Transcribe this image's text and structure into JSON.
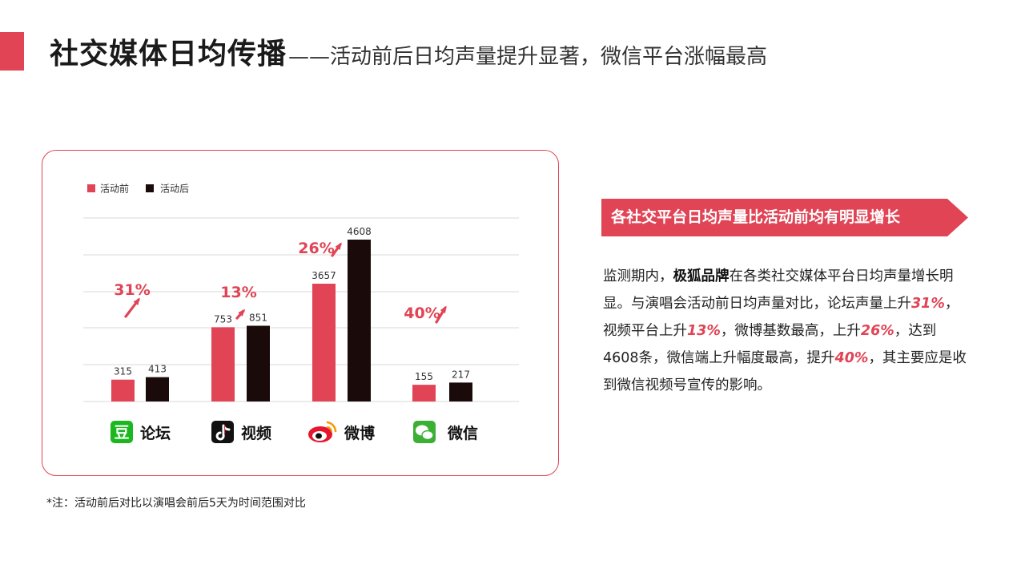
{
  "header": {
    "title_main": "社交媒体日均传播",
    "title_sub": "——活动前后日均声量提升显著，微信平台涨幅最高"
  },
  "colors": {
    "accent": "#e04455",
    "before": "#e04455",
    "after": "#1a0a0a",
    "grid": "#d9d9d9"
  },
  "chart_data": {
    "type": "bar",
    "categories": [
      "论坛",
      "视频",
      "微博",
      "微信"
    ],
    "category_icons": [
      "douban-icon",
      "douyin-icon",
      "weibo-icon",
      "wechat-icon"
    ],
    "series": [
      {
        "name": "活动前",
        "values": [
          315,
          753,
          3657,
          155
        ]
      },
      {
        "name": "活动后",
        "values": [
          413,
          851,
          4608,
          217
        ]
      }
    ],
    "growth_labels": [
      "31%",
      "13%",
      "26%",
      "40%"
    ],
    "legend_position": "top-left",
    "grid": true
  },
  "note": "*注：活动前后对比以演唱会前后5天为时间范围对比",
  "side": {
    "banner": "各社交平台日均声量比活动前均有明显增长",
    "desc": {
      "t1": "监测期内，",
      "brand": "极狐品牌",
      "t2": "在各类社交媒体平台日均声量增长明显。与演唱会活动前日均声量对比，论坛声量上升",
      "p1": "31%",
      "t3": "，视频平台上升",
      "p2": "13%",
      "t4": "，微博基数最高，上升",
      "p3": "26%",
      "t5": "，达到4608条，微信端上升幅度最高，提升",
      "p4": "40%",
      "t6": "，其主要应是收到微信视频号宣传的影响。"
    }
  }
}
